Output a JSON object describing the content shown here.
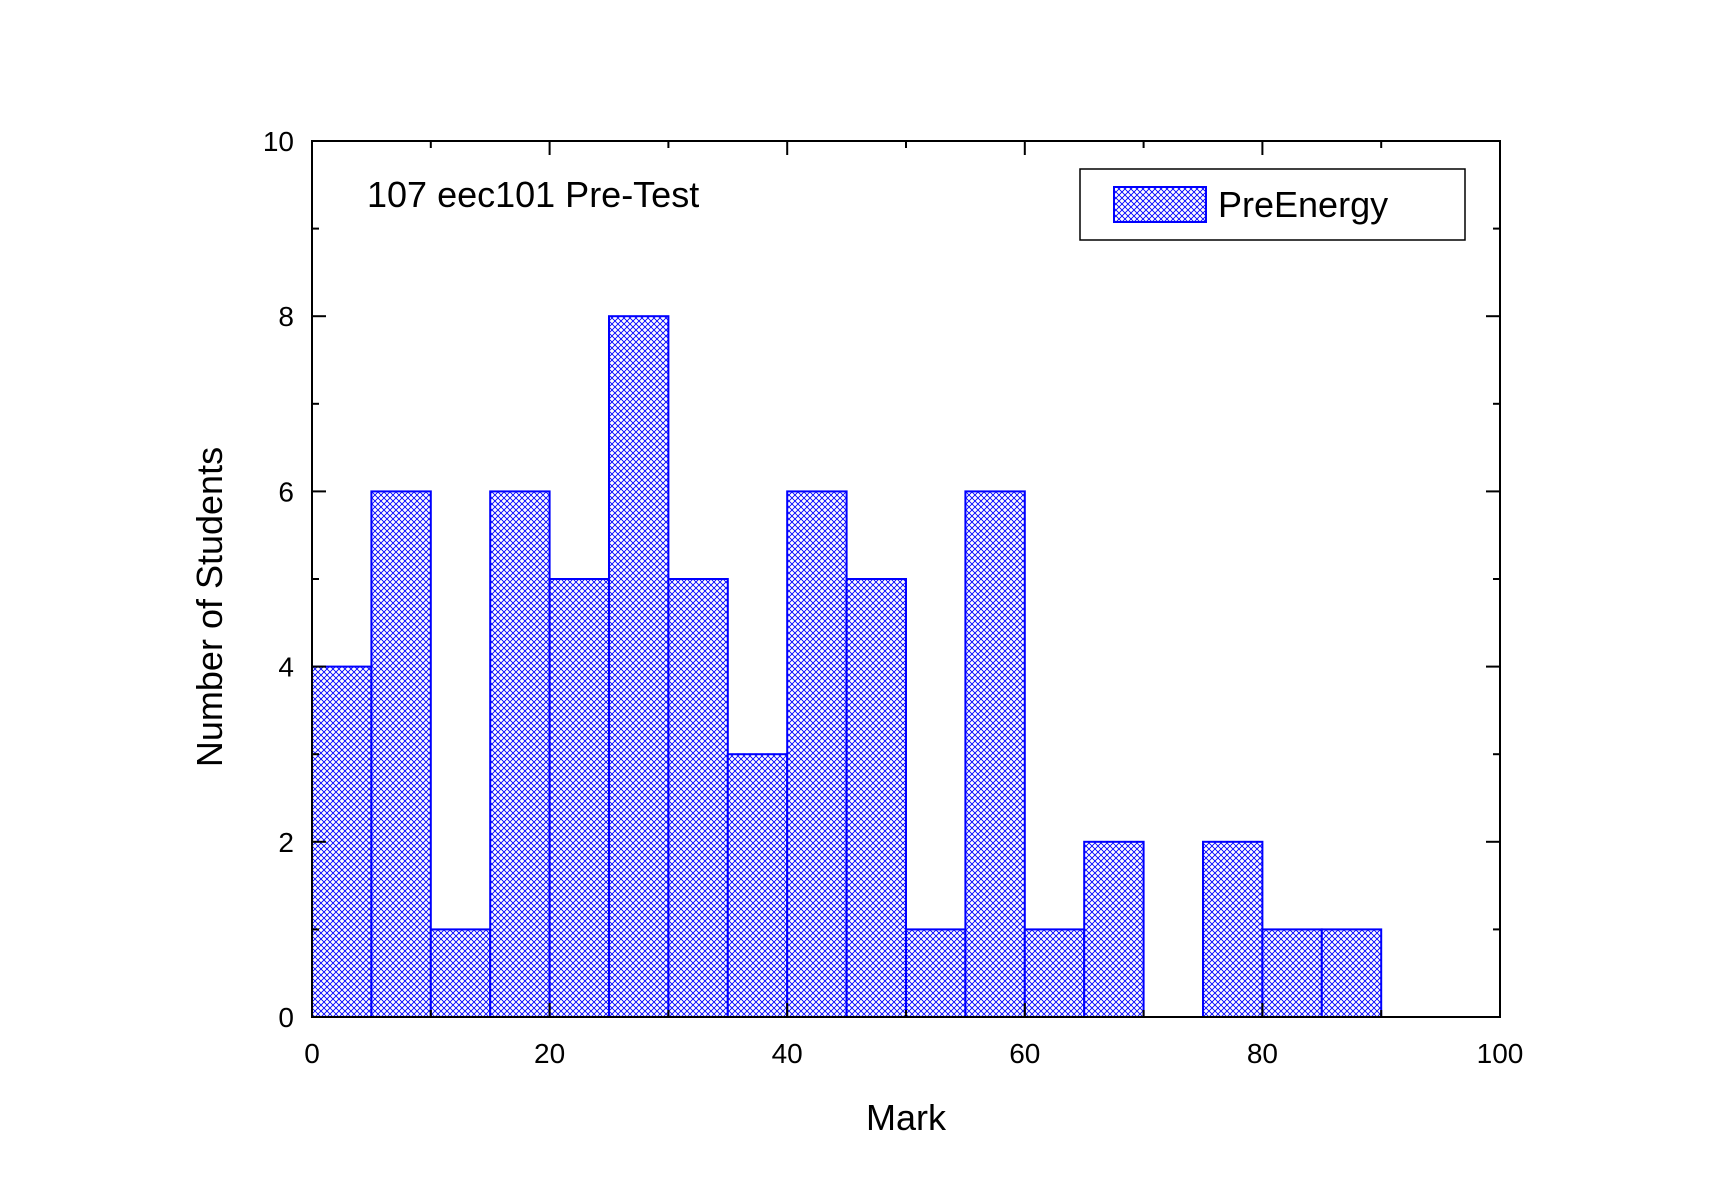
{
  "chart_data": {
    "type": "bar",
    "subtype": "histogram",
    "annotation": "107 eec101 Pre-Test",
    "xlabel": "Mark",
    "ylabel": "Number of Students",
    "xlim": [
      0,
      100
    ],
    "ylim": [
      0,
      10
    ],
    "x_ticks": [
      0,
      20,
      40,
      60,
      80,
      100
    ],
    "y_ticks": [
      0,
      2,
      4,
      6,
      8,
      10
    ],
    "bin_width": 5,
    "grid": false,
    "legend_position": "top-right",
    "series": [
      {
        "name": "PreEnergy",
        "color": "#0000ff",
        "fill_pattern": "crosshatch",
        "bins": [
          {
            "start": 0,
            "end": 5,
            "count": 4
          },
          {
            "start": 5,
            "end": 10,
            "count": 6
          },
          {
            "start": 10,
            "end": 15,
            "count": 1
          },
          {
            "start": 15,
            "end": 20,
            "count": 6
          },
          {
            "start": 20,
            "end": 25,
            "count": 5
          },
          {
            "start": 25,
            "end": 30,
            "count": 8
          },
          {
            "start": 30,
            "end": 35,
            "count": 5
          },
          {
            "start": 35,
            "end": 40,
            "count": 3
          },
          {
            "start": 40,
            "end": 45,
            "count": 6
          },
          {
            "start": 45,
            "end": 50,
            "count": 5
          },
          {
            "start": 50,
            "end": 55,
            "count": 1
          },
          {
            "start": 55,
            "end": 60,
            "count": 6
          },
          {
            "start": 60,
            "end": 65,
            "count": 1
          },
          {
            "start": 65,
            "end": 70,
            "count": 2
          },
          {
            "start": 70,
            "end": 75,
            "count": 0
          },
          {
            "start": 75,
            "end": 80,
            "count": 2
          },
          {
            "start": 80,
            "end": 85,
            "count": 1
          },
          {
            "start": 85,
            "end": 90,
            "count": 1
          }
        ]
      }
    ]
  }
}
